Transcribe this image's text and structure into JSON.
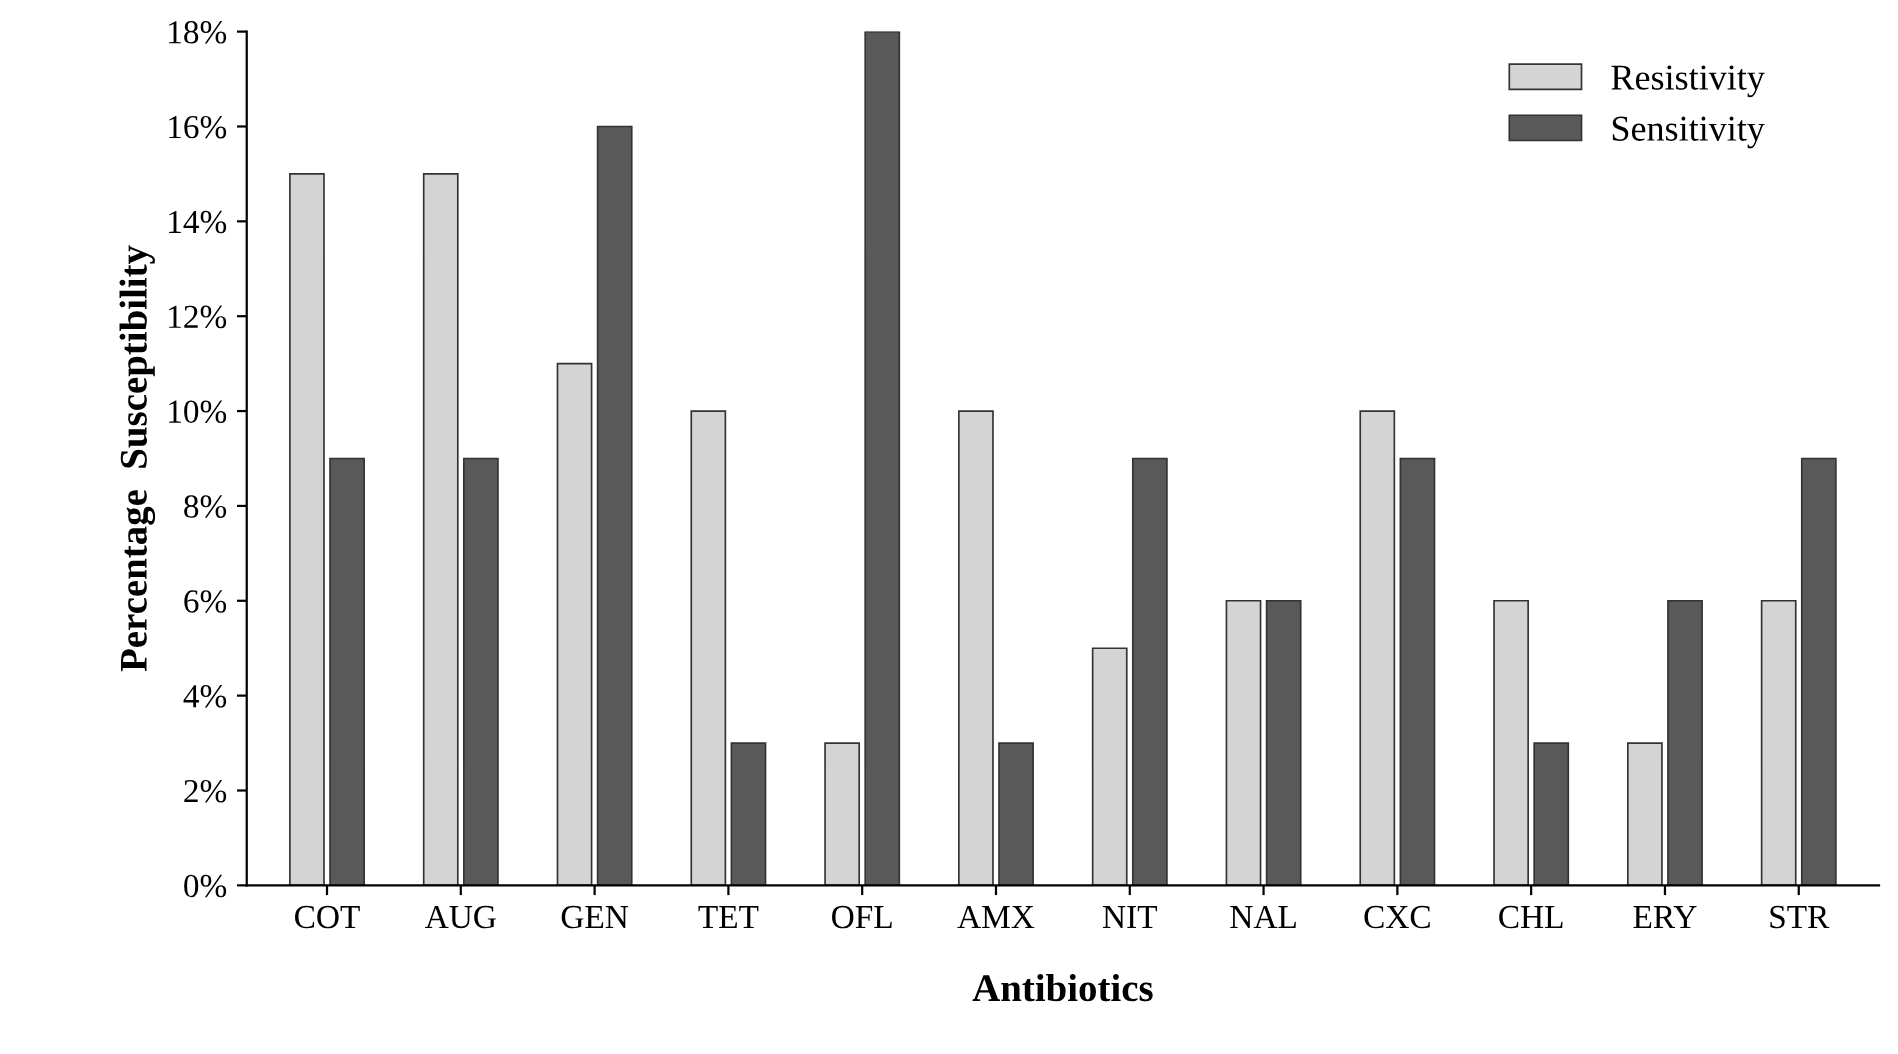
{
  "chart_data": {
    "type": "bar",
    "xlabel": "Antibiotics",
    "ylabel": "Percentage  Susceptibility",
    "categories": [
      "COT",
      "AUG",
      "GEN",
      "TET",
      "OFL",
      "AMX",
      "NIT",
      "NAL",
      "CXC",
      "CHL",
      "ERY",
      "STR"
    ],
    "series": [
      {
        "name": "Resistivity",
        "color": "#d4d4d4",
        "values": [
          15,
          15,
          11,
          10,
          3,
          10,
          5,
          6,
          10,
          6,
          3,
          6
        ]
      },
      {
        "name": "Sensitivity",
        "color": "#595959",
        "values": [
          9,
          9,
          16,
          3,
          18,
          3,
          9,
          6,
          9,
          3,
          6,
          9
        ]
      }
    ],
    "ylim": [
      0,
      18
    ],
    "yticks": [
      {
        "value": 0,
        "label": "0%"
      },
      {
        "value": 2,
        "label": "2%"
      },
      {
        "value": 4,
        "label": "4%"
      },
      {
        "value": 6,
        "label": "6%"
      },
      {
        "value": 8,
        "label": "8%"
      },
      {
        "value": 10,
        "label": "10%"
      },
      {
        "value": 12,
        "label": "12%"
      },
      {
        "value": 14,
        "label": "14%"
      },
      {
        "value": 16,
        "label": "16%"
      },
      {
        "value": 18,
        "label": "18%"
      }
    ],
    "grid": false,
    "legend": "top right"
  }
}
